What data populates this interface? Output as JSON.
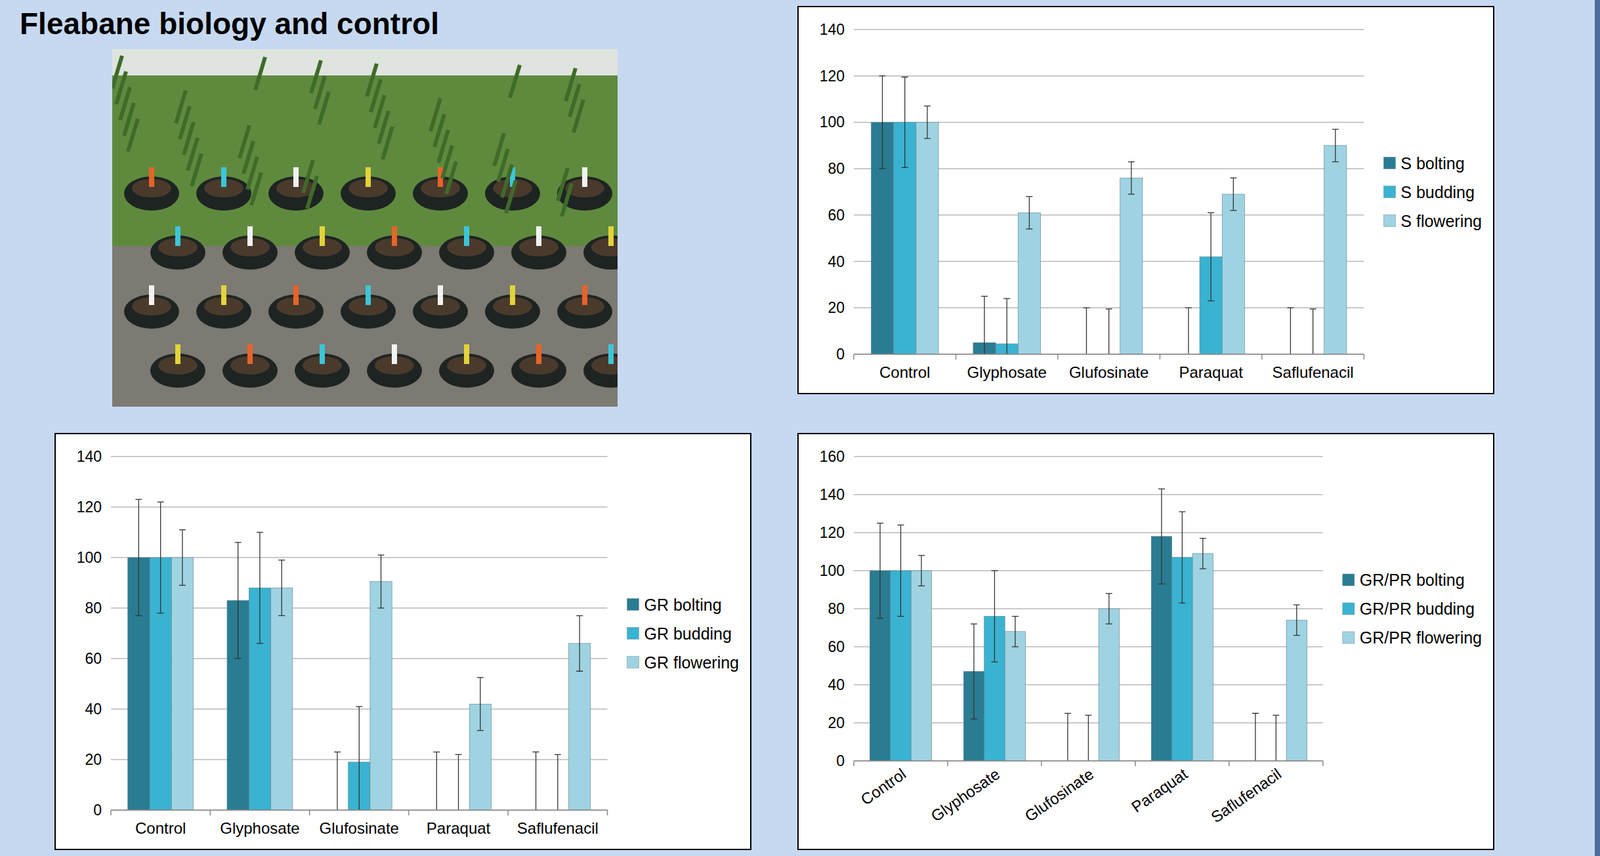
{
  "header": {
    "title": "Fleabane biology and control"
  },
  "chart_data": [
    {
      "type": "bar",
      "categories": [
        "Control",
        "Glyphosate",
        "Glufosinate",
        "Paraquat",
        "Saflufenacil"
      ],
      "ylim": [
        0,
        140
      ],
      "yticks": [
        0,
        20,
        40,
        60,
        80,
        100,
        120,
        140
      ],
      "grid": true,
      "legend": "right",
      "series": [
        {
          "name": "S bolting",
          "color": "#2a7c92",
          "values": [
            100,
            5,
            0,
            0,
            0
          ],
          "error": [
            20,
            20,
            20,
            20,
            20
          ]
        },
        {
          "name": "S budding",
          "color": "#39b3d1",
          "values": [
            100,
            4.5,
            0,
            42,
            0
          ],
          "error": [
            19.5,
            19.5,
            19.5,
            19,
            19.5
          ]
        },
        {
          "name": "S flowering",
          "color": "#9fd3e2",
          "values": [
            100,
            61,
            76,
            69,
            90
          ],
          "error": [
            7,
            7,
            7,
            7,
            7
          ]
        }
      ]
    },
    {
      "type": "bar",
      "categories": [
        "Control",
        "Glyphosate",
        "Glufosinate",
        "Paraquat",
        "Saflufenacil"
      ],
      "ylim": [
        0,
        140
      ],
      "yticks": [
        0,
        20,
        40,
        60,
        80,
        100,
        120,
        140
      ],
      "grid": true,
      "legend": "right",
      "series": [
        {
          "name": "GR bolting",
          "color": "#2a7c92",
          "values": [
            100,
            83,
            0,
            0,
            0
          ],
          "error": [
            23,
            23,
            23,
            23,
            23
          ]
        },
        {
          "name": "GR budding",
          "color": "#39b3d1",
          "values": [
            100,
            88,
            19,
            0,
            0
          ],
          "error": [
            22,
            22,
            22,
            22,
            22
          ]
        },
        {
          "name": "GR flowering",
          "color": "#9fd3e2",
          "values": [
            100,
            88,
            90.5,
            42,
            66
          ],
          "error": [
            11,
            11,
            10.5,
            10.5,
            11
          ]
        }
      ]
    },
    {
      "type": "bar",
      "categories": [
        "Control",
        "Glyphosate",
        "Glufosinate",
        "Paraquat",
        "Saflufenacil"
      ],
      "ylim": [
        0,
        160
      ],
      "yticks": [
        0,
        20,
        40,
        60,
        80,
        100,
        120,
        140,
        160
      ],
      "grid": true,
      "legend": "right",
      "series": [
        {
          "name": "GR/PR bolting",
          "color": "#2a7c92",
          "values": [
            100,
            47,
            0,
            118,
            0
          ],
          "error": [
            25,
            25,
            25,
            25,
            25
          ]
        },
        {
          "name": "GR/PR budding",
          "color": "#39b3d1",
          "values": [
            100,
            76,
            0,
            107,
            0
          ],
          "error": [
            24,
            24,
            24,
            24,
            24
          ]
        },
        {
          "name": "GR/PR flowering",
          "color": "#9fd3e2",
          "values": [
            100,
            68,
            80,
            109,
            74
          ],
          "error": [
            8,
            8,
            8,
            8,
            8
          ]
        }
      ]
    }
  ]
}
